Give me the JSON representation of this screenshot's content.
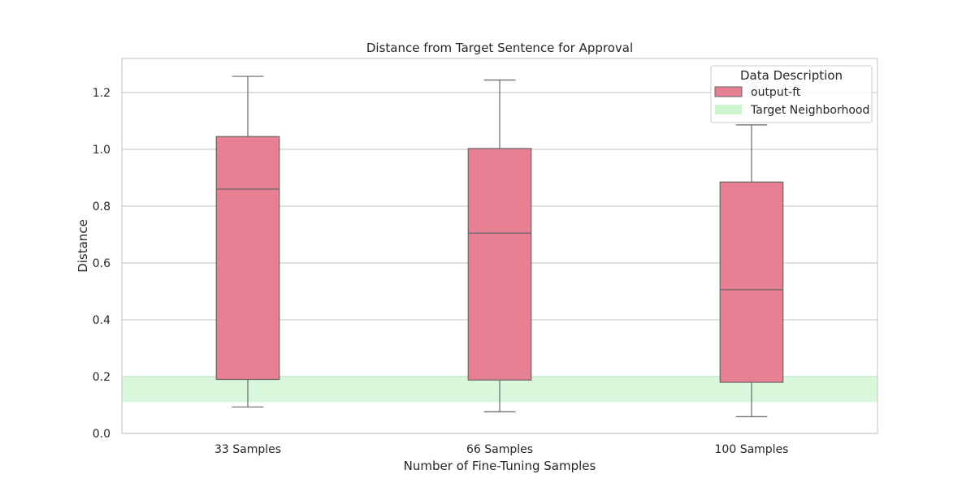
{
  "chart_data": {
    "type": "box",
    "title": "Distance from Target Sentence for Approval",
    "xlabel": "Number of Fine-Tuning Samples",
    "ylabel": "Distance",
    "categories": [
      "33 Samples",
      "66 Samples",
      "100 Samples"
    ],
    "series": [
      {
        "name": "output-ft",
        "color": "#e78093",
        "edge_color": "#666666",
        "boxes": [
          {
            "category": "33 Samples",
            "whisker_low": 0.093,
            "q1": 0.19,
            "median": 0.86,
            "q3": 1.045,
            "whisker_high": 1.257
          },
          {
            "category": "66 Samples",
            "whisker_low": 0.076,
            "q1": 0.188,
            "median": 0.705,
            "q3": 1.003,
            "whisker_high": 1.244
          },
          {
            "category": "100 Samples",
            "whisker_low": 0.059,
            "q1": 0.18,
            "median": 0.506,
            "q3": 0.885,
            "whisker_high": 1.086
          }
        ]
      }
    ],
    "target_band": {
      "name": "Target Neighborhood",
      "low": 0.11,
      "high": 0.2,
      "color": "#ccf5cf"
    },
    "ylim": [
      0,
      1.32
    ],
    "yticks": [
      0.0,
      0.2,
      0.4,
      0.6,
      0.8,
      1.0,
      1.2
    ],
    "ytick_labels": [
      "0.0",
      "0.2",
      "0.4",
      "0.6",
      "0.8",
      "1.0",
      "1.2"
    ],
    "grid": "horizontal",
    "legend": {
      "title": "Data Description",
      "placement": "top-right",
      "entries": [
        "output-ft",
        "Target Neighborhood"
      ]
    }
  }
}
